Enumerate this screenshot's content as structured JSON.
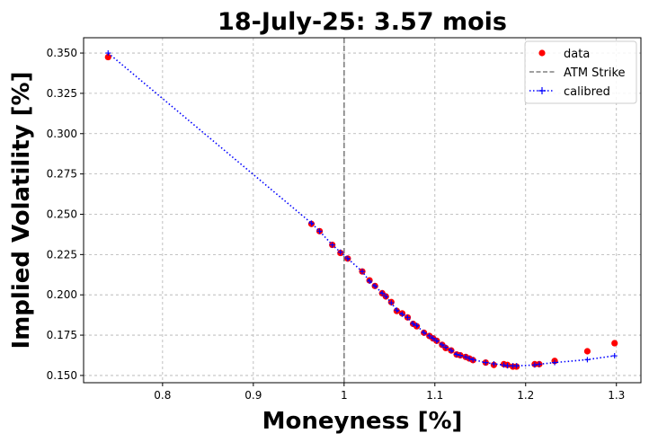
{
  "chart_data": {
    "type": "scatter",
    "title": "18-July-25: 3.57 mois",
    "xlabel": "Moneyness [%]",
    "ylabel": "Implied Volatility [%]",
    "xlim": [
      0.713,
      1.327
    ],
    "ylim": [
      0.1455,
      0.3595
    ],
    "xticks": [
      0.8,
      0.9,
      1.0,
      1.1,
      1.2,
      1.3
    ],
    "yticks": [
      0.15,
      0.175,
      0.2,
      0.225,
      0.25,
      0.275,
      0.3,
      0.325,
      0.35
    ],
    "grid": true,
    "legend_position": "top-right",
    "atm_strike": 1.0,
    "series": [
      {
        "name": "data",
        "kind": "scatter",
        "color": "#ff0000",
        "x": [
          0.74,
          0.964,
          0.973,
          0.987,
          0.996,
          1.004,
          1.02,
          1.028,
          1.034,
          1.042,
          1.046,
          1.052,
          1.058,
          1.064,
          1.07,
          1.076,
          1.08,
          1.088,
          1.094,
          1.098,
          1.102,
          1.108,
          1.112,
          1.118,
          1.124,
          1.128,
          1.134,
          1.138,
          1.142,
          1.156,
          1.165,
          1.176,
          1.18,
          1.186,
          1.19,
          1.21,
          1.215,
          1.232,
          1.268,
          1.298
        ],
        "y": [
          0.3475,
          0.244,
          0.2395,
          0.231,
          0.226,
          0.2225,
          0.2145,
          0.209,
          0.2055,
          0.201,
          0.199,
          0.1955,
          0.19,
          0.1885,
          0.186,
          0.182,
          0.1805,
          0.1765,
          0.1745,
          0.173,
          0.1715,
          0.169,
          0.167,
          0.1655,
          0.163,
          0.1625,
          0.1615,
          0.1605,
          0.1595,
          0.158,
          0.1565,
          0.157,
          0.1565,
          0.1555,
          0.1555,
          0.157,
          0.157,
          0.159,
          0.165,
          0.17
        ]
      },
      {
        "name": "ATM Strike",
        "kind": "vline",
        "color": "#808080",
        "x": 1.0
      },
      {
        "name": "calibred",
        "kind": "line",
        "color": "#0000ff",
        "x": [
          0.74,
          0.964,
          0.973,
          0.987,
          0.996,
          1.004,
          1.02,
          1.028,
          1.034,
          1.042,
          1.046,
          1.052,
          1.058,
          1.064,
          1.07,
          1.076,
          1.08,
          1.088,
          1.094,
          1.098,
          1.102,
          1.108,
          1.112,
          1.118,
          1.124,
          1.128,
          1.134,
          1.138,
          1.142,
          1.156,
          1.165,
          1.176,
          1.18,
          1.186,
          1.19,
          1.21,
          1.215,
          1.232,
          1.268,
          1.298
        ],
        "y": [
          0.35,
          0.2445,
          0.2395,
          0.231,
          0.2265,
          0.2225,
          0.2145,
          0.2085,
          0.2055,
          0.201,
          0.199,
          0.195,
          0.1905,
          0.188,
          0.186,
          0.182,
          0.181,
          0.1765,
          0.1745,
          0.173,
          0.1715,
          0.169,
          0.1675,
          0.1655,
          0.163,
          0.1625,
          0.1615,
          0.1605,
          0.1598,
          0.158,
          0.1572,
          0.1565,
          0.156,
          0.156,
          0.156,
          0.1565,
          0.157,
          0.158,
          0.1598,
          0.1622
        ]
      }
    ]
  }
}
